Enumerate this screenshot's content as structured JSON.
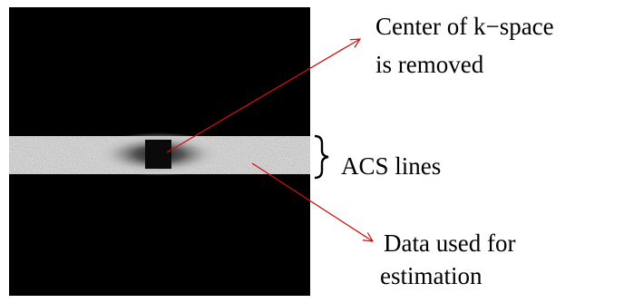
{
  "annotations": {
    "center": {
      "lines": [
        "Center of k−space",
        "is removed"
      ]
    },
    "acs": {
      "label": "ACS lines"
    },
    "data": {
      "lines": [
        "Data used for",
        "estimation"
      ]
    }
  }
}
